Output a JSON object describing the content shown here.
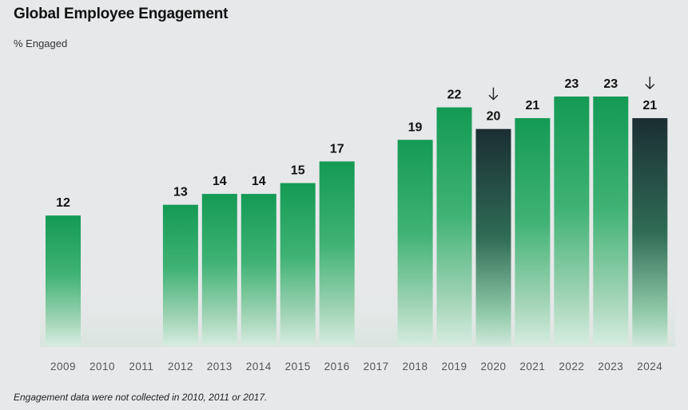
{
  "title": "Global Employee Engagement",
  "subtitle": "% Engaged",
  "footnote": "Engagement data were not collected in 2010, 2011 or 2017.",
  "colors": {
    "bar_green_top": "#1aa05a",
    "bar_green_bottom": "#cfe9da",
    "bar_dark_top": "#1d3338",
    "bar_dark_bottom": "#9fd0b4",
    "background": "#e6e8e9"
  },
  "chart_data": {
    "type": "bar",
    "title": "Global Employee Engagement",
    "ylabel": "% Engaged",
    "xlabel": "",
    "ylim": [
      0,
      23
    ],
    "categories": [
      "2009",
      "2010",
      "2011",
      "2012",
      "2013",
      "2014",
      "2015",
      "2016",
      "2017",
      "2018",
      "2019",
      "2020",
      "2021",
      "2022",
      "2023",
      "2024"
    ],
    "values": [
      12,
      null,
      null,
      13,
      14,
      14,
      15,
      17,
      null,
      19,
      22,
      20,
      21,
      23,
      23,
      21
    ],
    "labels": [
      "12",
      "",
      "",
      "13",
      "14",
      "14",
      "15",
      "17",
      "",
      "19",
      "22",
      "20",
      "21",
      "23",
      "23",
      "21"
    ],
    "highlight_decline": [
      "2020",
      "2024"
    ],
    "annotation_icon": "arrow-down-icon"
  }
}
